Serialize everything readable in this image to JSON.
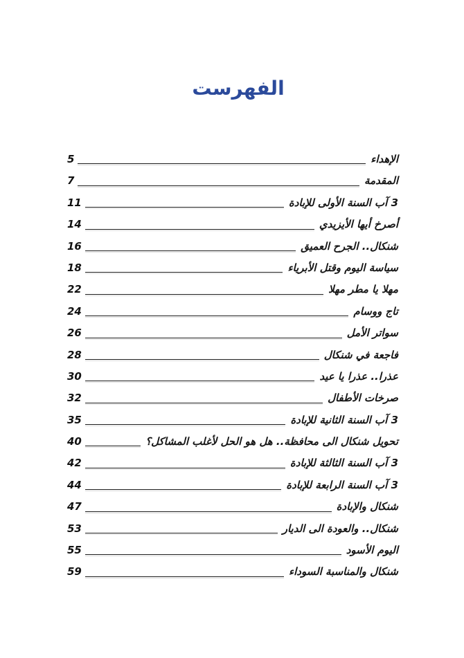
{
  "page": {
    "title": "الفهرست",
    "title_color": "#2b4a9b",
    "background_color": "#ffffff",
    "text_color": "#161616"
  },
  "toc": {
    "entries": [
      {
        "title": "الإهداء",
        "page": "5"
      },
      {
        "title": "المقدمة",
        "page": "7"
      },
      {
        "title": "3 آب السنة الأولى للإبادة",
        "page": "11"
      },
      {
        "title": "أصرخ أيها الأيزيدي",
        "page": "14"
      },
      {
        "title": "شنكال.. الجرح العميق",
        "page": "16"
      },
      {
        "title": "سياسة اليوم وقتل الأبرياء",
        "page": "18"
      },
      {
        "title": "مهلا يا مطر مهلا",
        "page": "22"
      },
      {
        "title": "تاج ووسام",
        "page": "24"
      },
      {
        "title": "سواتر الأمل",
        "page": "26"
      },
      {
        "title": "فاجعة في شنكال",
        "page": "28"
      },
      {
        "title": "عذرا.. عذرا يا عيد",
        "page": "30"
      },
      {
        "title": "صرخات الأطفال",
        "page": "32"
      },
      {
        "title": "3 آب السنة الثانية للإبادة",
        "page": "35"
      },
      {
        "title": "تحويل شنكال الى محافظة.. هل هو الحل لأغلب المشاكل؟",
        "page": "40"
      },
      {
        "title": "3 آب السنة الثالثة للإبادة",
        "page": "42"
      },
      {
        "title": "3 آب السنة الرابعة للإبادة",
        "page": "44"
      },
      {
        "title": "شنكال والإبادة",
        "page": "47"
      },
      {
        "title": "شنكال.. والعودة الى الديار",
        "page": "53"
      },
      {
        "title": "اليوم الأسود",
        "page": "55"
      },
      {
        "title": "شنكال والمناسبة السوداء",
        "page": "59"
      }
    ]
  }
}
